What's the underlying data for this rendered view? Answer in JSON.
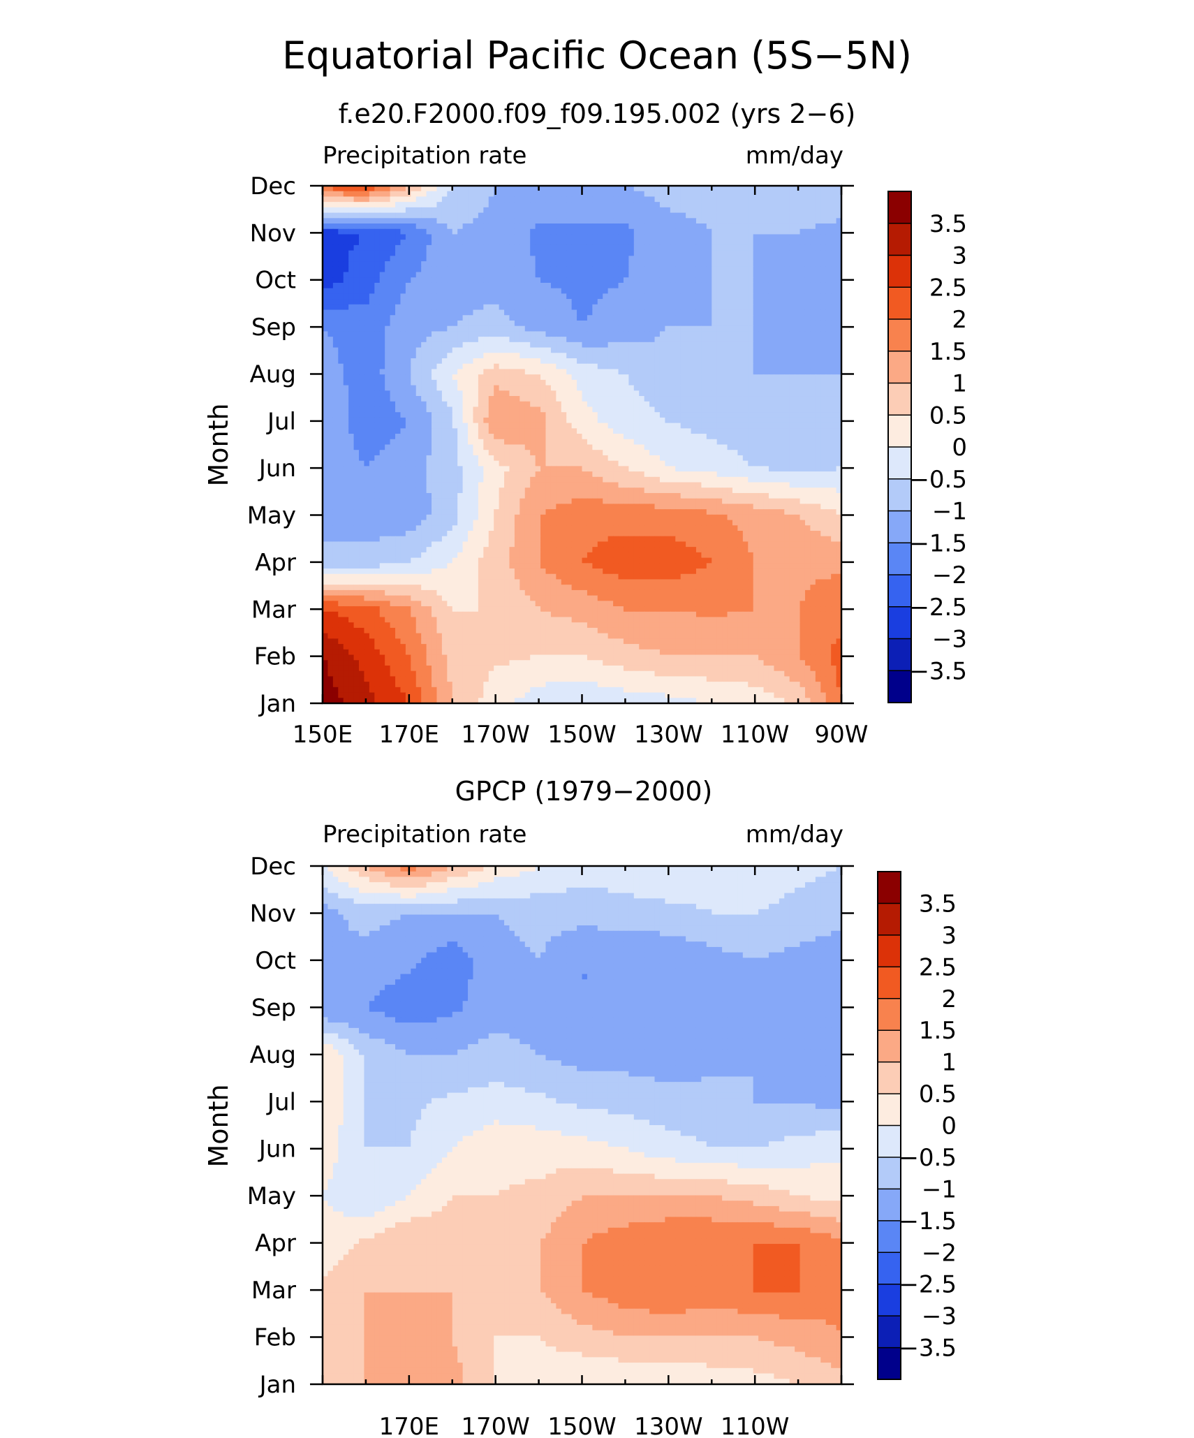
{
  "figure": {
    "title": "Equatorial Pacific Ocean (5S−5N)"
  },
  "colors": {
    "levels": [
      "#00008b",
      "#0c1fb6",
      "#1a3ee0",
      "#3663f0",
      "#5a86f5",
      "#86a8f8",
      "#b3cbf9",
      "#dde8fb",
      "#fdece0",
      "#fccdb6",
      "#fba985",
      "#f8824e",
      "#f15a22",
      "#dc3208",
      "#b51b02",
      "#8b0000"
    ]
  },
  "chart_data": [
    {
      "type": "heatmap",
      "subtitle": "f.e20.F2000.f09_f09.195.002 (yrs 2−6)",
      "left_label": "Precipitation rate",
      "right_label": "mm/day",
      "ylabel": "Month",
      "xlabel": "",
      "x_ticks": [
        "150E",
        "170E",
        "170W",
        "150W",
        "130W",
        "110W",
        "90W"
      ],
      "y_ticks": [
        "Jan",
        "Feb",
        "Mar",
        "Apr",
        "May",
        "Jun",
        "Jul",
        "Aug",
        "Sep",
        "Oct",
        "Nov",
        "Dec"
      ],
      "colorbar_labels": [
        "−3.5",
        "−3",
        "−2.5",
        "−2",
        "−1.5",
        "−1",
        "−0.5",
        "0",
        "0.5",
        "1",
        "1.5",
        "2",
        "2.5",
        "3",
        "3.5"
      ],
      "x": [
        150,
        160,
        170,
        180,
        190,
        200,
        210,
        220,
        230,
        240,
        250,
        260,
        270
      ],
      "months": [
        "Jan",
        "Feb",
        "Mar",
        "Apr",
        "May",
        "Jun",
        "Jul",
        "Aug",
        "Sep",
        "Oct",
        "Nov",
        "Dec"
      ],
      "values": [
        [
          3.8,
          3.2,
          2.5,
          1.0,
          0.2,
          -0.3,
          -0.5,
          -0.3,
          -0.2,
          0.0,
          0.2,
          0.6,
          2.0
        ],
        [
          3.5,
          2.8,
          2.0,
          0.8,
          0.6,
          0.5,
          0.5,
          0.8,
          1.0,
          1.0,
          1.0,
          1.5,
          2.2
        ],
        [
          2.5,
          2.2,
          1.5,
          0.5,
          0.5,
          1.0,
          1.2,
          1.5,
          1.5,
          1.6,
          1.5,
          1.5,
          1.8
        ],
        [
          -1.0,
          -0.8,
          -0.5,
          0.0,
          0.8,
          1.5,
          2.0,
          2.3,
          2.3,
          2.0,
          1.5,
          1.4,
          1.4
        ],
        [
          -1.0,
          -1.3,
          -1.3,
          -0.7,
          0.5,
          1.5,
          1.8,
          1.8,
          1.8,
          1.6,
          1.3,
          1.0,
          0.5
        ],
        [
          -1.2,
          -1.5,
          -1.2,
          -0.7,
          0.3,
          1.0,
          1.0,
          0.5,
          0.0,
          -0.2,
          -0.5,
          -0.6,
          -0.5
        ],
        [
          -1.0,
          -1.8,
          -1.5,
          -0.6,
          1.5,
          1.2,
          0.2,
          -0.3,
          -0.5,
          -0.7,
          -0.8,
          -0.8,
          -0.8
        ],
        [
          -1.2,
          -1.8,
          -1.0,
          0.0,
          0.8,
          0.5,
          -0.2,
          -0.5,
          -0.8,
          -0.9,
          -1.0,
          -1.0,
          -1.0
        ],
        [
          -1.5,
          -1.8,
          -1.2,
          -1.0,
          -0.8,
          -1.2,
          -1.5,
          -1.3,
          -1.0,
          -1.0,
          -1.0,
          -1.2,
          -1.5
        ],
        [
          -2.8,
          -2.2,
          -1.5,
          -1.2,
          -1.2,
          -1.5,
          -1.6,
          -1.5,
          -1.2,
          -1.0,
          -1.0,
          -1.5,
          -1.5
        ],
        [
          -2.7,
          -2.5,
          -2.0,
          -1.0,
          -1.2,
          -1.6,
          -1.6,
          -1.6,
          -1.2,
          -1.0,
          -1.0,
          -1.0,
          -1.2
        ],
        [
          2.2,
          2.5,
          1.0,
          -0.5,
          -1.0,
          -1.0,
          -1.0,
          -1.0,
          -0.8,
          -0.8,
          -0.6,
          -0.5,
          -0.5
        ]
      ]
    },
    {
      "type": "heatmap",
      "subtitle": "GPCP (1979−2000)",
      "left_label": "Precipitation rate",
      "right_label": "mm/day",
      "ylabel": "Month",
      "xlabel": "",
      "x_ticks": [
        "",
        "170E",
        "170W",
        "150W",
        "130W",
        "110W",
        ""
      ],
      "y_ticks": [
        "Jan",
        "Feb",
        "Mar",
        "Apr",
        "May",
        "Jun",
        "Jul",
        "Aug",
        "Sep",
        "Oct",
        "Nov",
        "Dec"
      ],
      "colorbar_labels": [
        "−3.5",
        "−3",
        "−2.5",
        "−2",
        "−1.5",
        "−1",
        "−0.5",
        "0",
        "0.5",
        "1",
        "1.5",
        "2",
        "2.5",
        "3",
        "3.5"
      ],
      "x": [
        150,
        160,
        170,
        180,
        190,
        200,
        210,
        220,
        230,
        240,
        250,
        260,
        270
      ],
      "months": [
        "Jan",
        "Feb",
        "Mar",
        "Apr",
        "May",
        "Jun",
        "Jul",
        "Aug",
        "Sep",
        "Oct",
        "Nov",
        "Dec"
      ],
      "values": [
        [
          0.5,
          1.0,
          1.5,
          1.2,
          0.5,
          0.2,
          0.0,
          0.0,
          0.0,
          0.2,
          0.3,
          0.5,
          0.8
        ],
        [
          0.6,
          1.0,
          1.2,
          1.0,
          0.5,
          0.5,
          0.8,
          1.0,
          1.0,
          1.0,
          1.0,
          1.2,
          1.5
        ],
        [
          0.6,
          1.0,
          1.0,
          1.0,
          0.7,
          1.0,
          1.5,
          1.8,
          2.0,
          1.8,
          2.0,
          2.0,
          1.6
        ],
        [
          0.2,
          0.6,
          1.0,
          0.8,
          0.6,
          1.0,
          1.5,
          1.8,
          2.0,
          2.0,
          2.0,
          2.0,
          1.6
        ],
        [
          0.0,
          -0.5,
          0.0,
          0.5,
          0.5,
          0.6,
          1.0,
          1.0,
          1.0,
          1.0,
          0.8,
          0.5,
          0.3
        ],
        [
          0.3,
          -0.5,
          -0.5,
          0.0,
          0.4,
          0.3,
          0.2,
          0.0,
          -0.3,
          -0.5,
          -0.5,
          -0.3,
          -0.1
        ],
        [
          0.5,
          -0.6,
          -0.6,
          -0.4,
          -0.3,
          -0.4,
          -0.6,
          -0.7,
          -0.8,
          -0.8,
          -1.0,
          -1.0,
          -1.2
        ],
        [
          0.5,
          -0.6,
          -1.0,
          -1.0,
          -0.8,
          -1.0,
          -1.2,
          -1.2,
          -1.3,
          -1.2,
          -1.0,
          -1.2,
          -1.3
        ],
        [
          -1.5,
          -1.5,
          -1.8,
          -1.6,
          -1.2,
          -1.2,
          -1.5,
          -1.5,
          -1.4,
          -1.3,
          -1.0,
          -1.2,
          -1.3
        ],
        [
          -1.0,
          -1.2,
          -1.4,
          -1.8,
          -1.2,
          -1.0,
          -1.5,
          -1.5,
          -1.5,
          -1.2,
          -1.0,
          -1.2,
          -1.5
        ],
        [
          -1.2,
          -0.8,
          -1.0,
          -1.0,
          -1.0,
          -0.8,
          -0.8,
          -0.7,
          -0.6,
          -0.5,
          -0.5,
          -0.6,
          -0.7
        ],
        [
          0.0,
          1.0,
          1.8,
          1.0,
          0.4,
          0.0,
          -0.3,
          -0.2,
          -0.2,
          -0.3,
          -0.3,
          -0.4,
          -0.5
        ]
      ]
    }
  ]
}
